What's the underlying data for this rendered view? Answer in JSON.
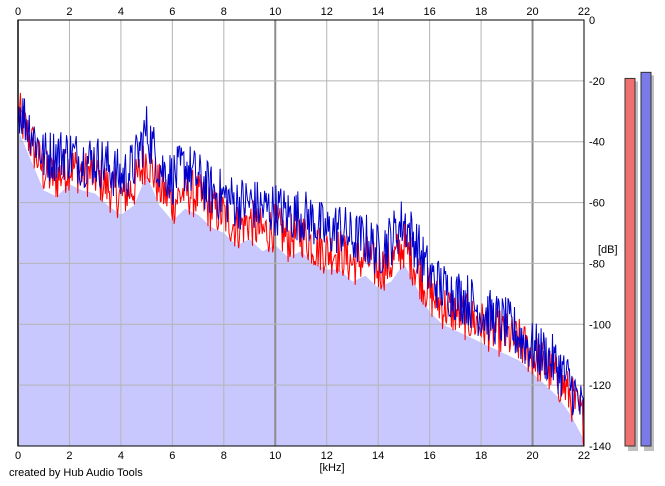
{
  "app": {
    "credit": "created by Hub Audio Tools"
  },
  "chart_data": {
    "type": "area",
    "x_unit_label": "[kHz]",
    "y_unit_label": "[dB]",
    "x_ticks": [
      "0",
      "2",
      "4",
      "6",
      "8",
      "10",
      "12",
      "14",
      "16",
      "18",
      "20",
      "22"
    ],
    "y_ticks": [
      "0",
      "-20",
      "-40",
      "-60",
      "-80",
      "-100",
      "-120",
      "-140"
    ],
    "xlim": [
      0,
      22
    ],
    "ylim": [
      -140,
      0
    ],
    "grid": true,
    "colors": {
      "background": "#ffffff",
      "fill": "#c8c8ff",
      "left_channel": "#ff0000",
      "right_channel": "#0000cc",
      "grid": "#b4b4b4",
      "grid_major": "#8c8c8c"
    },
    "series": [
      {
        "channel": "left",
        "x": [
          0,
          0.5,
          1,
          1.5,
          2,
          2.5,
          3,
          3.5,
          4,
          4.5,
          5,
          5.5,
          6,
          6.5,
          7,
          7.5,
          8,
          8.5,
          9,
          9.5,
          10,
          10.5,
          11,
          11.5,
          12,
          12.5,
          13,
          13.5,
          14,
          14.5,
          15,
          15.5,
          16,
          16.5,
          17,
          17.5,
          18,
          18.5,
          19,
          19.5,
          20,
          20.5,
          21,
          21.5,
          22
        ],
        "values": [
          -30,
          -40,
          -50,
          -52,
          -48,
          -50,
          -51,
          -55,
          -58,
          -55,
          -45,
          -55,
          -60,
          -56,
          -58,
          -62,
          -64,
          -68,
          -66,
          -70,
          -68,
          -72,
          -70,
          -74,
          -76,
          -76,
          -80,
          -78,
          -82,
          -80,
          -74,
          -82,
          -90,
          -94,
          -96,
          -98,
          -100,
          -102,
          -104,
          -106,
          -110,
          -114,
          -118,
          -124,
          -132
        ]
      },
      {
        "channel": "right",
        "x": [
          0,
          0.5,
          1,
          1.5,
          2,
          2.5,
          3,
          3.5,
          4,
          4.5,
          5,
          5.5,
          6,
          6.5,
          7,
          7.5,
          8,
          8.5,
          9,
          9.5,
          10,
          10.5,
          11,
          11.5,
          12,
          12.5,
          13,
          13.5,
          14,
          14.5,
          15,
          15.5,
          16,
          16.5,
          17,
          17.5,
          18,
          18.5,
          19,
          19.5,
          20,
          20.5,
          21,
          21.5,
          22
        ],
        "values": [
          -28,
          -36,
          -45,
          -44,
          -44,
          -46,
          -46,
          -48,
          -52,
          -48,
          -36,
          -48,
          -52,
          -48,
          -52,
          -56,
          -58,
          -60,
          -60,
          -62,
          -62,
          -64,
          -64,
          -66,
          -70,
          -68,
          -72,
          -72,
          -76,
          -72,
          -66,
          -74,
          -84,
          -88,
          -90,
          -92,
          -96,
          -98,
          -100,
          -104,
          -108,
          -110,
          -114,
          -120,
          -130
        ]
      }
    ],
    "level_meters": [
      {
        "channel": "left",
        "level_db": -10,
        "color": "#f07070"
      },
      {
        "channel": "right",
        "level_db": -8,
        "color": "#7a7ae8"
      }
    ]
  }
}
